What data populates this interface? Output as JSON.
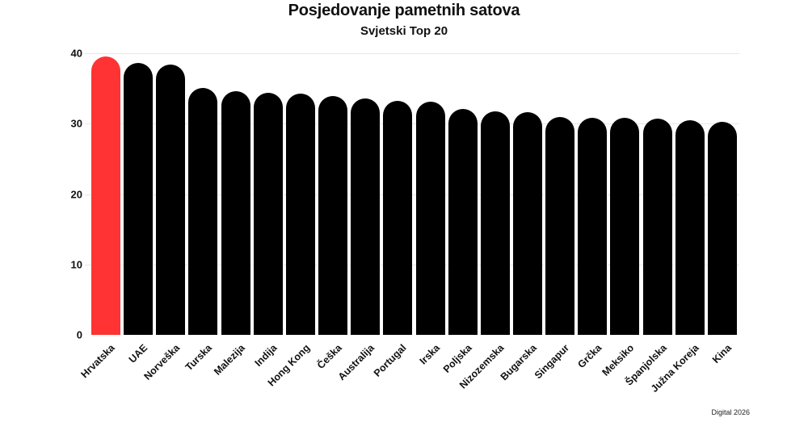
{
  "header": {
    "title": "Posjedovanje pametnih satova",
    "subtitle": "Svjetski Top 20"
  },
  "footer": {
    "source": "Digital 2026"
  },
  "colors": {
    "highlight": "#ff3333",
    "bar": "#000000",
    "grid": "#e6e6e6"
  },
  "y_axis": {
    "ticks": [
      "0",
      "10",
      "20",
      "30",
      "40"
    ]
  },
  "chart_data": {
    "type": "bar",
    "title": "Posjedovanje pametnih satova",
    "subtitle": "Svjetski Top 20",
    "xlabel": "",
    "ylabel": "",
    "ylim": [
      0,
      40
    ],
    "yticks": [
      0,
      10,
      20,
      30,
      40
    ],
    "grid": true,
    "legend": null,
    "highlighted_category": "Hrvatska",
    "categories": [
      "Hrvatska",
      "UAE",
      "Norveška",
      "Turska",
      "Malezija",
      "Indija",
      "Hong Kong",
      "Češka",
      "Australija",
      "Portugal",
      "Irska",
      "Poljska",
      "Nizozemska",
      "Bugarska",
      "Singapur",
      "Grčka",
      "Meksiko",
      "Španjolska",
      "Južna Koreja",
      "Kina"
    ],
    "values": [
      39.6,
      38.6,
      38.4,
      35.1,
      34.6,
      34.4,
      34.3,
      33.9,
      33.6,
      33.2,
      33.1,
      32.1,
      31.8,
      31.6,
      30.9,
      30.8,
      30.8,
      30.7,
      30.5,
      30.3
    ],
    "annotations": [
      "Digital 2026"
    ]
  }
}
